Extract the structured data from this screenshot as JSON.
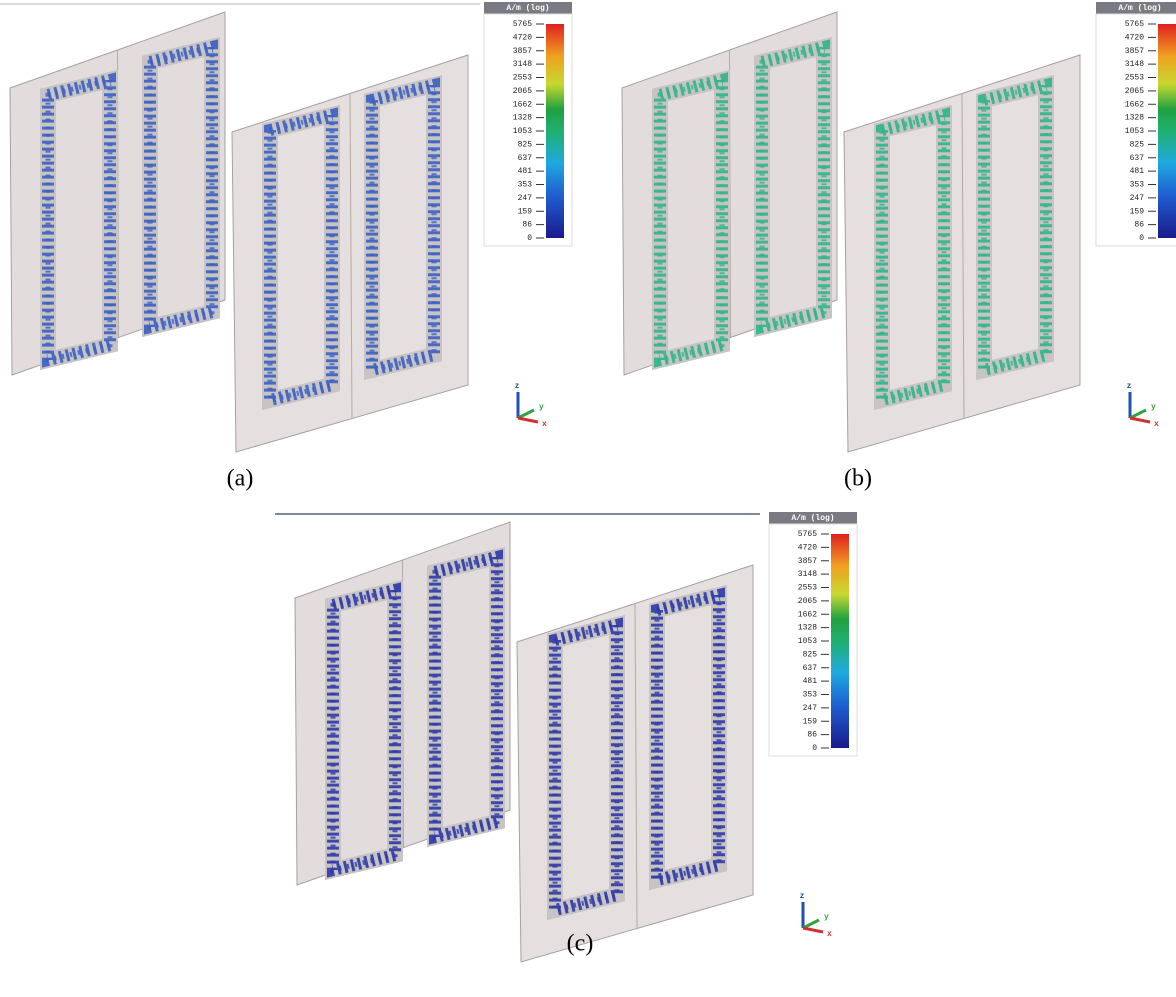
{
  "panels": [
    {
      "label": "(a)",
      "color": "#3a5fc4",
      "colorbar": {
        "title": "A/m (log)",
        "ticks": [
          "5765",
          "4720",
          "3857",
          "3148",
          "2553",
          "2065",
          "1662",
          "1328",
          "1053",
          "825",
          "637",
          "481",
          "353",
          "247",
          "159",
          "86",
          "0"
        ]
      },
      "axes": {
        "z": "z",
        "y": "y",
        "x": "x"
      }
    },
    {
      "label": "(b)",
      "color": "#2fb58a",
      "colorbar": {
        "title": "A/m (log)",
        "ticks": [
          "5765",
          "4720",
          "3857",
          "3148",
          "2553",
          "2065",
          "1662",
          "1328",
          "1053",
          "825",
          "637",
          "481",
          "353",
          "247",
          "159",
          "86",
          "0"
        ]
      },
      "axes": {
        "z": "z",
        "y": "y",
        "x": "x"
      }
    },
    {
      "label": "(c)",
      "color": "#2c3aa8",
      "colorbar": {
        "title": "A/m (log)",
        "ticks": [
          "5765",
          "4720",
          "3857",
          "3148",
          "2553",
          "2065",
          "1662",
          "1328",
          "1053",
          "825",
          "637",
          "481",
          "353",
          "247",
          "159",
          "86",
          "0"
        ]
      },
      "axes": {
        "z": "z",
        "y": "y",
        "x": "x"
      }
    }
  ]
}
